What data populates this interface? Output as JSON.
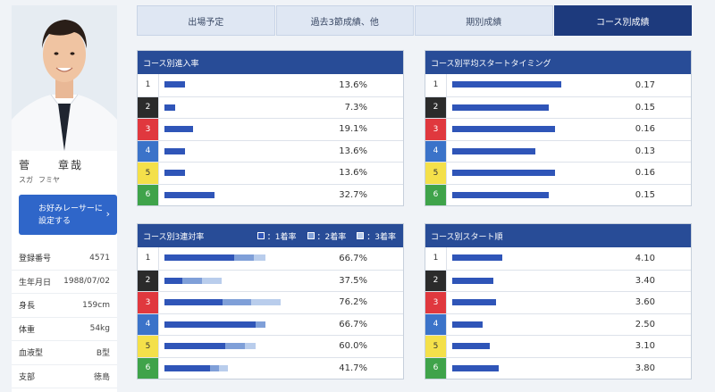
{
  "racer": {
    "name_family": "菅",
    "name_given": "章哉",
    "kana_family": "スガ",
    "kana_given": "フミヤ",
    "favorite_line1": "お好みレーサーに",
    "favorite_line2": "設定する",
    "favorite_arrow": "›",
    "profile": [
      {
        "key": "登録番号",
        "value": "4571"
      },
      {
        "key": "生年月日",
        "value": "1988/07/02"
      },
      {
        "key": "身長",
        "value": "159cm"
      },
      {
        "key": "体重",
        "value": "54kg"
      },
      {
        "key": "血液型",
        "value": "B型"
      },
      {
        "key": "支部",
        "value": "徳島"
      }
    ]
  },
  "tabs": [
    "出場予定",
    "過去3節成績、他",
    "期別成績",
    "コース別成績"
  ],
  "active_tab": 3,
  "lane_colors": [
    {
      "bg": "#ffffff",
      "fg": "#333333"
    },
    {
      "bg": "#2b2b2b",
      "fg": "#ffffff"
    },
    {
      "bg": "#e0383e",
      "fg": "#ffffff"
    },
    {
      "bg": "#3b73c9",
      "fg": "#ffffff"
    },
    {
      "bg": "#f4e04a",
      "fg": "#333333"
    },
    {
      "bg": "#3fa34a",
      "fg": "#ffffff"
    }
  ],
  "panels": {
    "entry": {
      "title": "コース別進入率",
      "rows": [
        {
          "lane": "1",
          "pct": 13.6,
          "label": "13.6%"
        },
        {
          "lane": "2",
          "pct": 7.3,
          "label": "7.3%"
        },
        {
          "lane": "3",
          "pct": 19.1,
          "label": "19.1%"
        },
        {
          "lane": "4",
          "pct": 13.6,
          "label": "13.6%"
        },
        {
          "lane": "5",
          "pct": 13.6,
          "label": "13.6%"
        },
        {
          "lane": "6",
          "pct": 32.7,
          "label": "32.7%"
        }
      ]
    },
    "timing": {
      "title": "コース別平均スタートタイミング",
      "rows": [
        {
          "lane": "1",
          "value": 0.17,
          "label": "0.17"
        },
        {
          "lane": "2",
          "value": 0.15,
          "label": "0.15"
        },
        {
          "lane": "3",
          "value": 0.16,
          "label": "0.16"
        },
        {
          "lane": "4",
          "value": 0.13,
          "label": "0.13"
        },
        {
          "lane": "5",
          "value": 0.16,
          "label": "0.16"
        },
        {
          "lane": "6",
          "value": 0.15,
          "label": "0.15"
        }
      ]
    },
    "top3": {
      "title": "コース別3連対率",
      "legend": [
        "：1着率",
        "：2着率",
        "：3着率"
      ],
      "segment_colors": [
        "#2f55b8",
        "#7f9fd8",
        "#b9cdec"
      ],
      "rows": [
        {
          "lane": "1",
          "first": 46.0,
          "second": 13.0,
          "third": 7.7,
          "label": "66.7%"
        },
        {
          "lane": "2",
          "first": 12.0,
          "second": 12.5,
          "third": 13.0,
          "label": "37.5%"
        },
        {
          "lane": "3",
          "first": 38.0,
          "second": 19.0,
          "third": 19.2,
          "label": "76.2%"
        },
        {
          "lane": "4",
          "first": 60.0,
          "second": 6.7,
          "third": 0,
          "label": "66.7%"
        },
        {
          "lane": "5",
          "first": 40.0,
          "second": 13.0,
          "third": 7.0,
          "label": "60.0%"
        },
        {
          "lane": "6",
          "first": 30.0,
          "second": 6.0,
          "third": 5.7,
          "label": "41.7%"
        }
      ]
    },
    "order": {
      "title": "コース別スタート順",
      "rows": [
        {
          "lane": "1",
          "value": 4.1,
          "label": "4.10"
        },
        {
          "lane": "2",
          "value": 3.4,
          "label": "3.40"
        },
        {
          "lane": "3",
          "value": 3.6,
          "label": "3.60"
        },
        {
          "lane": "4",
          "value": 2.5,
          "label": "2.50"
        },
        {
          "lane": "5",
          "value": 3.1,
          "label": "3.10"
        },
        {
          "lane": "6",
          "value": 3.8,
          "label": "3.80"
        }
      ]
    }
  },
  "colors": {
    "bar": "#2f55b8",
    "panel_header": "#284c97",
    "active_tab": "#1d3a7d"
  }
}
